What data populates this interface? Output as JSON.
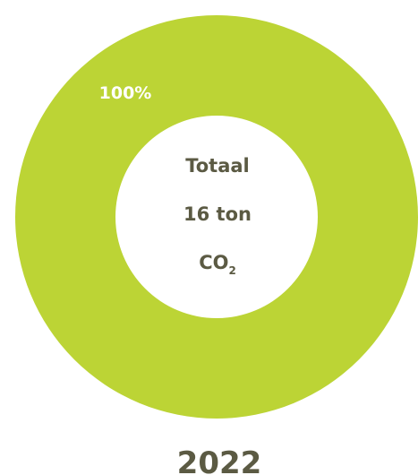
{
  "chart_data": {
    "type": "pie",
    "variant": "donut",
    "categories": [
      ""
    ],
    "values": [
      100
    ],
    "data_labels": [
      "100%"
    ],
    "colors": [
      "#bcd435"
    ],
    "center_label": {
      "line1": "Totaal",
      "line2": "16 ton",
      "line3_main": "CO",
      "line3_sub": "2"
    },
    "year": "2022"
  },
  "colors": {
    "ring": "#bcd435",
    "text": "#5b5a43",
    "label": "#ffffff"
  }
}
